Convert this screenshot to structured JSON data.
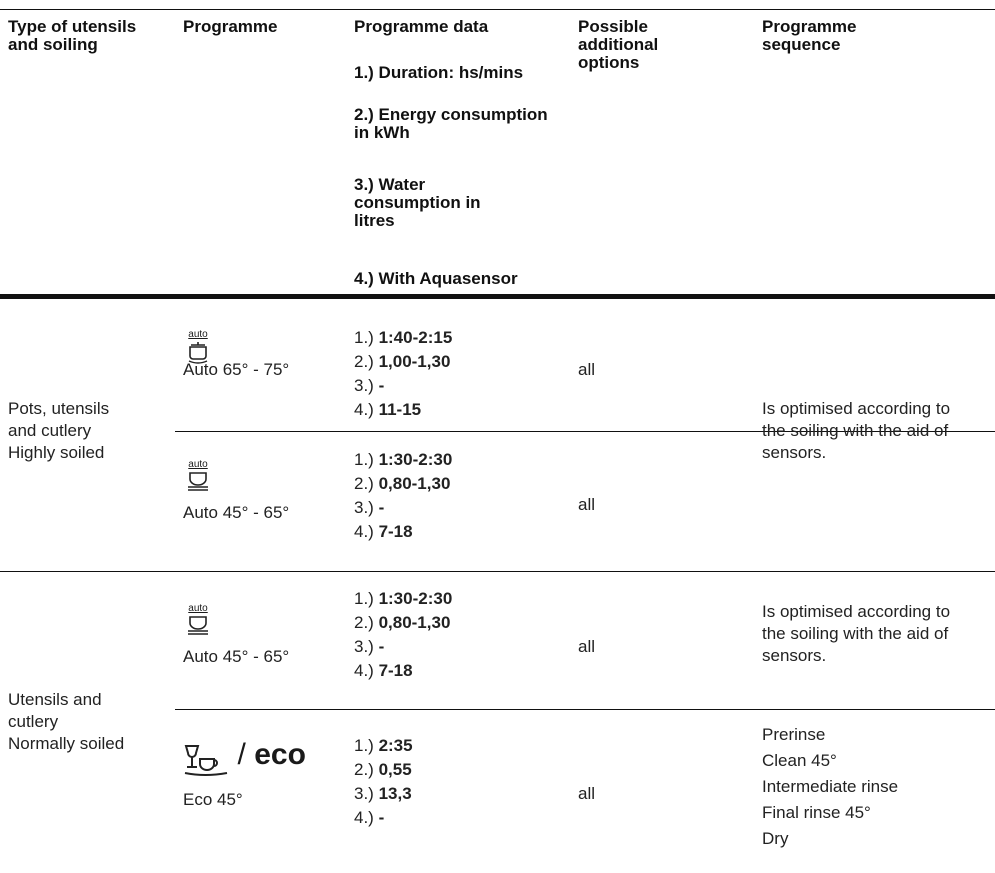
{
  "header": {
    "col1": "Type of utensils and soiling",
    "col2": "Programme",
    "col3": "Programme data",
    "col3_items": [
      "1.) Duration: hs/mins",
      "2.) Energy consumption in kWh",
      "3.) Water consumption in litres",
      "4.) With Aquasensor"
    ],
    "col4": "Possible additional options",
    "col5": "Programme sequence"
  },
  "groups": [
    {
      "type_lines": [
        "Pots, utensils",
        "and cutlery",
        "Highly soiled"
      ],
      "rows": [
        {
          "icon": "pot-auto-icon",
          "icon_label": "auto",
          "programme": "Auto 65° - 75°",
          "data": [
            {
              "prefix": "1.) ",
              "value": "1:40-2:15"
            },
            {
              "prefix": "2.) ",
              "value": "1,00-1,30"
            },
            {
              "prefix": "3.) ",
              "value": "-"
            },
            {
              "prefix": "4.) ",
              "value": "11-15"
            }
          ],
          "options": "all"
        },
        {
          "icon": "bowl-auto-icon",
          "icon_label": "auto",
          "programme": "Auto 45° - 65°",
          "data": [
            {
              "prefix": "1.) ",
              "value": "1:30-2:30"
            },
            {
              "prefix": "2.) ",
              "value": "0,80-1,30"
            },
            {
              "prefix": "3.) ",
              "value": "-"
            },
            {
              "prefix": "4.) ",
              "value": "7-18"
            }
          ],
          "options": "all"
        }
      ],
      "sequence_lines": [
        "Is optimised according to",
        "the soiling with the aid of",
        "sensors."
      ]
    },
    {
      "type_lines": [
        "Utensils and",
        "cutlery",
        "Normally soiled"
      ],
      "rows": [
        {
          "icon": "bowl-auto-icon",
          "icon_label": "auto",
          "programme": "Auto 45° - 65°",
          "data": [
            {
              "prefix": "1.) ",
              "value": "1:30-2:30"
            },
            {
              "prefix": "2.) ",
              "value": "0,80-1,30"
            },
            {
              "prefix": "3.) ",
              "value": "-"
            },
            {
              "prefix": "4.) ",
              "value": "7-18"
            }
          ],
          "options": "all",
          "sequence_lines": [
            "Is optimised according to",
            "the soiling with the aid of",
            "sensors."
          ]
        },
        {
          "icon": "glass-cup-eco-icon",
          "slash": "/",
          "eco_word": "eco",
          "programme": "Eco 45°",
          "data": [
            {
              "prefix": "1.) ",
              "value": "2:35"
            },
            {
              "prefix": "2.) ",
              "value": "0,55"
            },
            {
              "prefix": "3.) ",
              "value": "13,3"
            },
            {
              "prefix": "4.)  ",
              "value": "-"
            }
          ],
          "options": "all",
          "sequence_lines": [
            "Prerinse",
            "Clean 45°",
            "Intermediate rinse",
            "Final rinse 45°",
            "Dry"
          ]
        }
      ]
    }
  ]
}
